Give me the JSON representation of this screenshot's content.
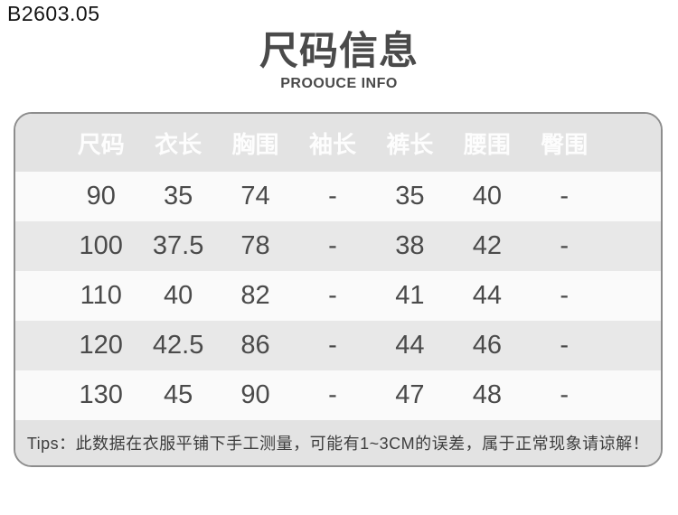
{
  "page": {
    "product_code": "B2603.05"
  },
  "header": {
    "title": "尺码信息",
    "subtitle": "PROOUCE INFO"
  },
  "table": {
    "columns": [
      "尺码",
      "衣长",
      "胸围",
      "袖长",
      "裤长",
      "腰围",
      "臀围"
    ],
    "rows": [
      [
        "90",
        "35",
        "74",
        "-",
        "35",
        "40",
        "-"
      ],
      [
        "100",
        "37.5",
        "78",
        "-",
        "38",
        "42",
        "-"
      ],
      [
        "110",
        "40",
        "82",
        "-",
        "41",
        "44",
        "-"
      ],
      [
        "120",
        "42.5",
        "86",
        "-",
        "44",
        "46",
        "-"
      ],
      [
        "130",
        "45",
        "90",
        "-",
        "47",
        "48",
        "-"
      ]
    ],
    "tips": "Tips：此数据在衣服平铺下手工测量，可能有1~3CM的误差，属于正常现象请谅解！"
  },
  "colors": {
    "table_border": "#8d8d8d",
    "header_band": "#e3e3e3",
    "zebra_gray": "#e8e8e8",
    "row_white": "#fafafa",
    "header_text": "#fdfdfd",
    "body_text": "#4a4a4a",
    "title_text": "#4a4a4a"
  }
}
